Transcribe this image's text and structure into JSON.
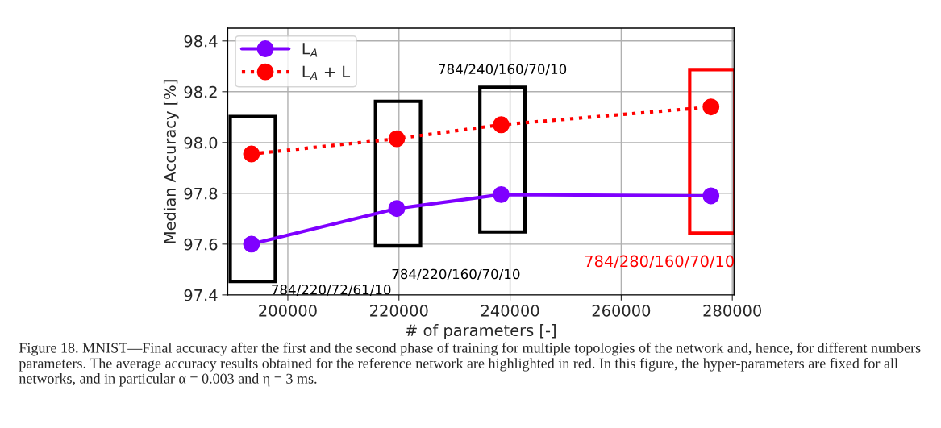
{
  "chart_data": {
    "type": "line",
    "xlabel": "# of parameters [-]",
    "ylabel": "Median Accuracy [%]",
    "x": [
      193460,
      219600,
      238400,
      276160
    ],
    "series": [
      {
        "name": "L$_{A}$",
        "color": "#7f00ff",
        "values": [
          97.6,
          97.74,
          97.795,
          97.79
        ],
        "line_style": "solid"
      },
      {
        "name": "L$_{A}$ + L",
        "color": "#ff0000",
        "values": [
          97.955,
          98.015,
          98.07,
          98.14
        ],
        "line_style": "dotted"
      }
    ],
    "xlim": [
      189180,
      280300
    ],
    "xticks": [
      200000,
      220000,
      240000,
      260000,
      280000
    ],
    "ylim": [
      97.4,
      98.45
    ],
    "yticks": [
      97.4,
      97.6,
      97.8,
      {
        "value": 98.0,
        "label": "98.0"
      },
      98.2,
      98.4
    ],
    "grid": true,
    "legend": "top left",
    "marker": "circle",
    "annotations": [
      "784/220/72/61/10",
      "784/220/160/70/10",
      "784/240/160/70/10",
      "784/280/160/70/10",
      "Figure 18. MNIST—Final accuracy after the first and the second phase of training for multiple topologies of the network and, hence, for different numbers parameters. The average accuracy results obtained for the reference network are highlighted in red. In this figure, the hyper-parameters are fixed for all networks, and in particular α = 0.003 and η = 3 ms."
    ]
  }
}
